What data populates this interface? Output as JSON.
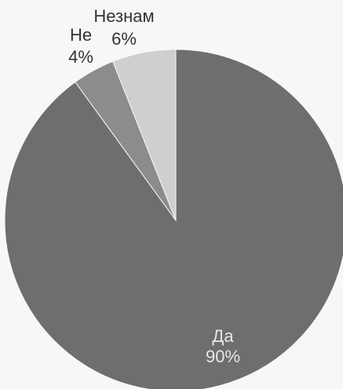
{
  "chart_data": {
    "type": "pie",
    "slices": [
      {
        "label": "Да",
        "value": 90,
        "value_label": "90%",
        "color": "#6e6e6e",
        "label_color": "#e6e6e6"
      },
      {
        "label": "Не",
        "value": 4,
        "value_label": "4%",
        "color": "#8c8c8c",
        "label_color": "#333333"
      },
      {
        "label": "Незнам",
        "value": 6,
        "value_label": "6%",
        "color": "#cfcfcf",
        "label_color": "#333333"
      }
    ],
    "start_angle_deg": 0,
    "direction": "clockwise",
    "legend": "none"
  }
}
